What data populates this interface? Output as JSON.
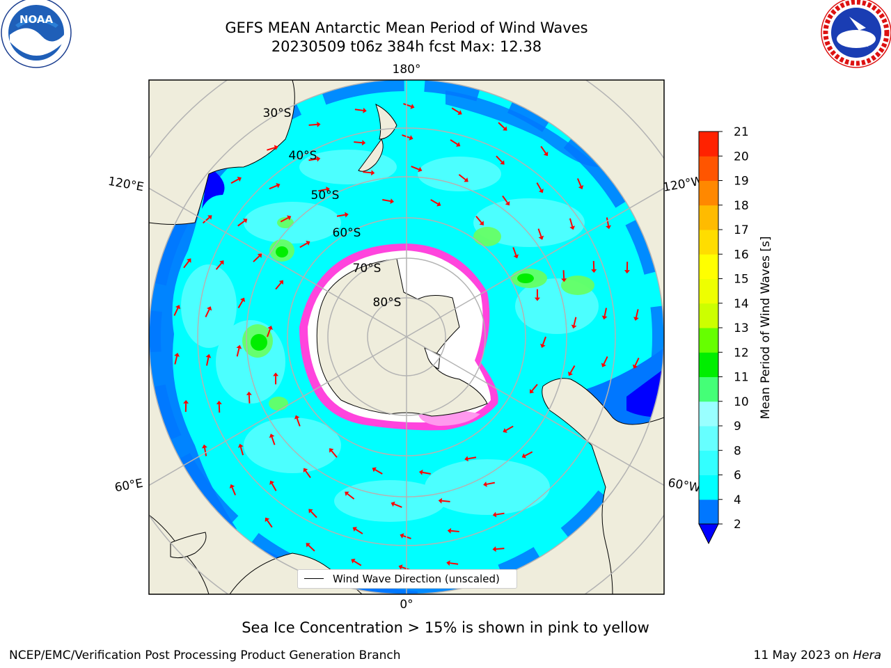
{
  "title": {
    "line1": "GEFS MEAN Antarctic Mean Period of Wind Waves",
    "line2": "20230509 t06z 384h fcst   Max: 12.38"
  },
  "logos": {
    "left": {
      "icon": "noaa-logo-icon",
      "text": "NOAA"
    },
    "right": {
      "icon": "nws-logo-icon",
      "text": "NATIONAL WEATHER SERVICE"
    }
  },
  "map": {
    "projection": "south-polar-stereographic",
    "longitude_labels": {
      "top": "180°",
      "bottom": "0°",
      "left_upper": "120°E",
      "left_lower": "60°E",
      "right_upper": "120°W",
      "right_lower": "60°W"
    },
    "latitude_labels": [
      "30°S",
      "40°S",
      "50°S",
      "60°S",
      "70°S",
      "80°S"
    ],
    "colors": {
      "land": "#efeddc",
      "ocean_main": "#00ffff",
      "ocean_light": "#66ffff",
      "low_period": "#0077ff",
      "deep_low": "#0000ff",
      "green": "#66ff66",
      "arrow": "#ff0000",
      "ice_pink": "#ff44dd",
      "grid": "#b3b3b3"
    }
  },
  "legend": {
    "label": "Wind Wave Direction (unscaled)"
  },
  "colorbar": {
    "label": "Mean Period of Wind Waves [s]",
    "ticks": [
      "2",
      "4",
      "6",
      "8",
      "9",
      "10",
      "11",
      "12",
      "13",
      "14",
      "15",
      "16",
      "17",
      "18",
      "19",
      "20",
      "21"
    ],
    "colors": [
      "#0077ff",
      "#00ffff",
      "#33ffff",
      "#66ffff",
      "#99ffff",
      "#44ff77",
      "#00ee00",
      "#66ff00",
      "#ccff00",
      "#eeff00",
      "#ffff00",
      "#ffdd00",
      "#ffbb00",
      "#ff8800",
      "#ff5500",
      "#ff2200"
    ],
    "under_color": "#0000ff"
  },
  "ice_note": "Sea Ice Concentration > 15% is shown in pink to yellow",
  "footer": {
    "left": "NCEP/EMC/Verification Post Processing Product Generation Branch",
    "date": "11 May 2023 on ",
    "machine": "Hera"
  }
}
